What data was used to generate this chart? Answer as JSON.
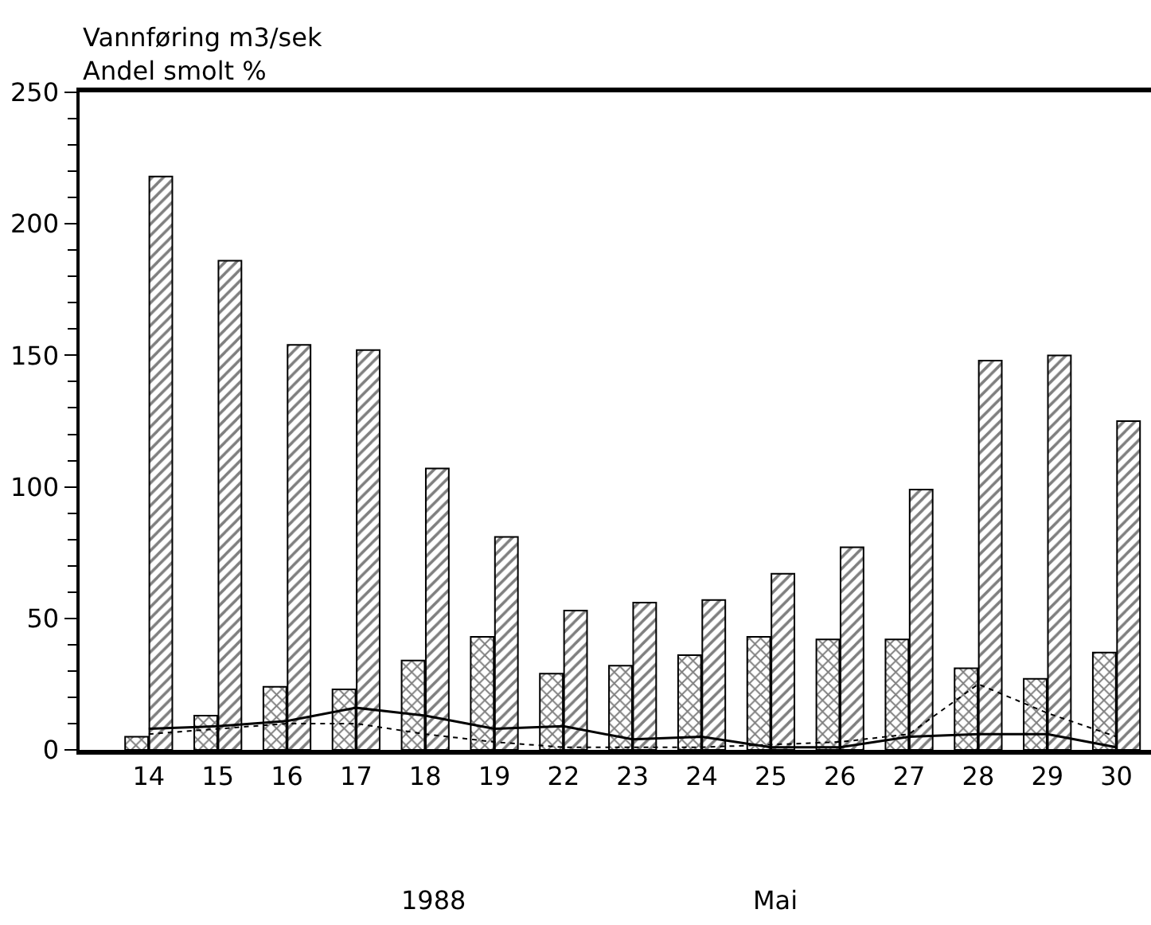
{
  "chart_data": {
    "type": "bar",
    "ylabel": "Vannføring m3/sek\nAndel smolt %",
    "annotations": [
      "1988",
      "Mai"
    ],
    "categories": [
      "14",
      "15",
      "16",
      "17",
      "18",
      "19",
      "22",
      "23",
      "24",
      "25",
      "26",
      "27",
      "28",
      "29",
      "30"
    ],
    "series": [
      {
        "color": "#000000",
        "values": [
          5,
          13,
          24,
          23,
          34,
          43,
          29,
          32,
          36,
          43,
          42,
          42,
          31,
          27,
          37
        ]
      },
      {
        "color": "#000000",
        "values": [
          218,
          186,
          154,
          152,
          107,
          81,
          53,
          56,
          57,
          67,
          77,
          99,
          148,
          150,
          125
        ]
      },
      {
        "type": "line",
        "color": "#000000",
        "line_style": "solid",
        "values": [
          8,
          9,
          11,
          16,
          13,
          8,
          9,
          4,
          5,
          1,
          1,
          5,
          6,
          6,
          1
        ]
      },
      {
        "type": "line",
        "color": "#000000",
        "line_style": "dotted",
        "values": [
          6,
          8,
          10,
          10,
          6,
          3,
          1,
          1,
          1,
          2,
          3,
          6,
          25,
          14,
          5
        ]
      }
    ],
    "marker": "none",
    "ylim": [
      0,
      250
    ],
    "yticks": [
      0,
      50,
      100,
      150,
      200,
      250
    ]
  }
}
